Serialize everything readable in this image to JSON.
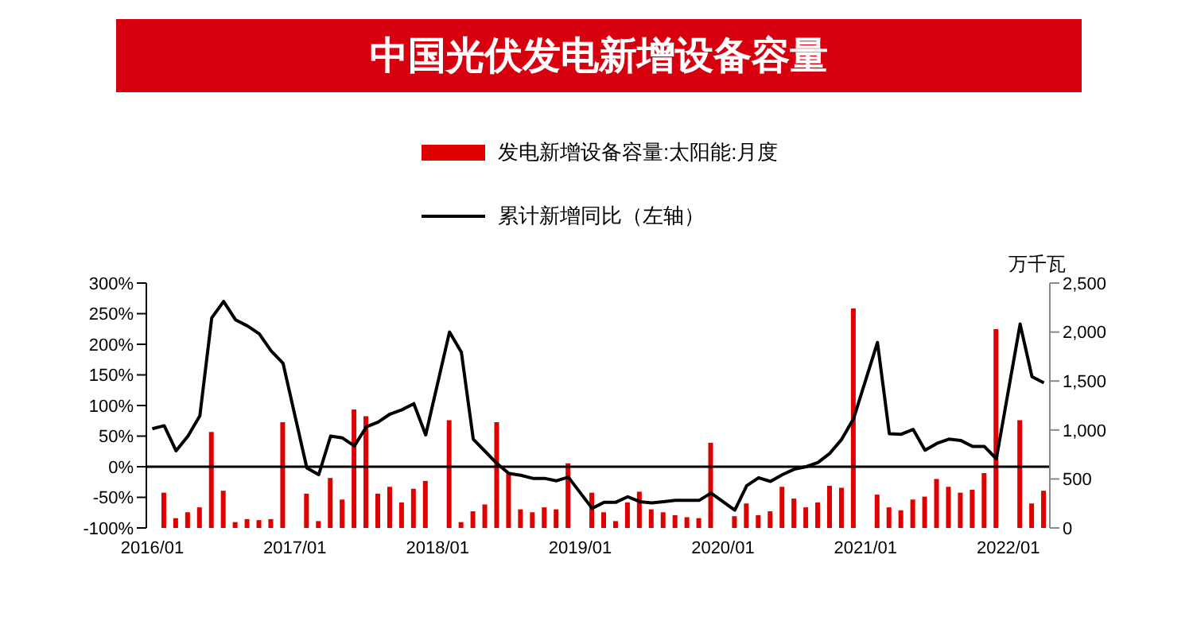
{
  "chart_data": {
    "type": "bar",
    "title": "中国光伏发电新增设备容量",
    "y2label": "万千瓦",
    "categories": [
      "2016/01",
      null,
      null,
      null,
      null,
      null,
      null,
      null,
      null,
      null,
      null,
      null,
      "2017/01",
      null,
      null,
      null,
      null,
      null,
      null,
      null,
      null,
      null,
      null,
      null,
      "2018/01",
      null,
      null,
      null,
      null,
      null,
      null,
      null,
      null,
      null,
      null,
      null,
      "2019/01",
      null,
      null,
      null,
      null,
      null,
      null,
      null,
      null,
      null,
      null,
      null,
      "2020/01",
      null,
      null,
      null,
      null,
      null,
      null,
      null,
      null,
      null,
      null,
      null,
      "2021/01",
      null,
      null,
      null,
      null,
      null,
      null,
      null,
      null,
      null,
      null,
      null,
      "2022/01",
      null,
      null,
      null
    ],
    "series": [
      {
        "name": "发电新增设备容量:太阳能:月度",
        "axis": "y2",
        "color": "#e00000",
        "values": [
          null,
          360,
          100,
          160,
          210,
          980,
          380,
          60,
          90,
          80,
          90,
          1080,
          null,
          350,
          70,
          510,
          290,
          1210,
          1140,
          350,
          420,
          260,
          400,
          480,
          null,
          1100,
          60,
          170,
          240,
          1080,
          570,
          190,
          160,
          210,
          190,
          660,
          null,
          360,
          160,
          70,
          260,
          370,
          190,
          160,
          130,
          110,
          100,
          870,
          null,
          120,
          250,
          130,
          170,
          420,
          300,
          210,
          260,
          430,
          410,
          2240,
          null,
          340,
          210,
          180,
          290,
          320,
          500,
          420,
          360,
          390,
          560,
          2030,
          null,
          1100,
          250,
          380
        ]
      },
      {
        "name": "累计新增同比（左轴）",
        "type": "line",
        "color": "#000000",
        "values": [
          62,
          67,
          26,
          50,
          83,
          243,
          270,
          240,
          230,
          217,
          189,
          169,
          null,
          -2,
          -13,
          50,
          47,
          34,
          65,
          73,
          86,
          93,
          103,
          52,
          null,
          220,
          187,
          45,
          25,
          5,
          -11,
          -14,
          -19,
          -19,
          -23,
          -17,
          null,
          -68,
          -58,
          -58,
          -49,
          -57,
          -59,
          -57,
          -55,
          -55,
          -55,
          -43,
          null,
          -71,
          -31,
          -18,
          -24,
          -13,
          -4,
          0,
          7,
          22,
          45,
          79,
          null,
          203,
          54,
          53,
          61,
          27,
          38,
          45,
          43,
          33,
          33,
          13,
          null,
          233,
          147,
          137
        ]
      }
    ],
    "ylim": [
      -100,
      300
    ],
    "yticks": [
      {
        "value": -100,
        "label": "-100%"
      },
      {
        "value": -50,
        "label": "-50%"
      },
      {
        "value": 0,
        "label": "0%"
      },
      {
        "value": 50,
        "label": "50%"
      },
      {
        "value": 100,
        "label": "100%"
      },
      {
        "value": 150,
        "label": "150%"
      },
      {
        "value": 200,
        "label": "200%"
      },
      {
        "value": 250,
        "label": "250%"
      },
      {
        "value": 300,
        "label": "300%"
      }
    ],
    "y2lim": [
      0,
      2500
    ],
    "y2ticks": [
      0,
      500,
      {
        "value": 1000,
        "label": "1,000"
      },
      {
        "value": 1500,
        "label": "1,500"
      },
      {
        "value": 2000,
        "label": "2,000"
      },
      {
        "value": 2500,
        "label": "2,500"
      }
    ],
    "ref_lines": [
      {
        "axis": "y",
        "value": 0,
        "color": "#000000"
      }
    ],
    "legend": "top",
    "marker": "none",
    "line_style": "solid"
  }
}
